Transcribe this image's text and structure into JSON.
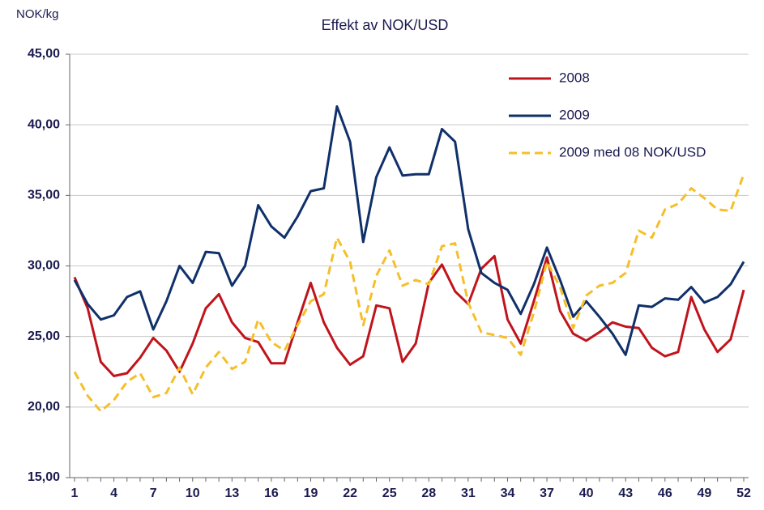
{
  "chart_data": {
    "type": "line",
    "title": "Effekt av NOK/USD",
    "y_label": "NOK/kg",
    "categories": [
      1,
      null,
      null,
      4,
      null,
      null,
      7,
      null,
      null,
      10,
      null,
      null,
      13,
      null,
      null,
      16,
      null,
      null,
      19,
      null,
      null,
      22,
      null,
      null,
      25,
      null,
      null,
      28,
      null,
      null,
      31,
      null,
      null,
      34,
      null,
      null,
      37,
      null,
      null,
      40,
      null,
      null,
      43,
      null,
      null,
      46,
      null,
      null,
      49,
      null,
      null,
      52
    ],
    "series": [
      {
        "name": "2008",
        "color": "#c0141c",
        "dash": false,
        "values": [
          29.2,
          27,
          23.2,
          22.2,
          22.4,
          23.5,
          24.9,
          24,
          22.5,
          24.5,
          27,
          28,
          26,
          24.9,
          24.6,
          23.1,
          23.1,
          26,
          28.8,
          26,
          24.2,
          23,
          23.6,
          27.2,
          27,
          23.2,
          24.5,
          28.8,
          30.1,
          28.2,
          27.3,
          29.8,
          30.7,
          26.2,
          24.5,
          27.5,
          30.6,
          26.8,
          25.2,
          24.7,
          25.3,
          26,
          25.7,
          25.6,
          24.2,
          23.6,
          23.9,
          27.8,
          25.5,
          23.9,
          24.8,
          28.3
        ]
      },
      {
        "name": "2009",
        "color": "#10306a",
        "dash": false,
        "values": [
          29,
          27.3,
          26.2,
          26.5,
          27.8,
          28.2,
          25.5,
          27.5,
          30,
          28.8,
          31,
          30.9,
          28.6,
          30,
          34.3,
          32.8,
          32,
          33.5,
          35.3,
          35.5,
          41.3,
          38.8,
          31.7,
          36.3,
          38.4,
          36.4,
          36.5,
          36.5,
          39.7,
          38.8,
          32.6,
          29.5,
          28.8,
          28.3,
          26.6,
          28.7,
          31.3,
          29,
          26.4,
          27.5,
          26.4,
          25.2,
          23.7,
          27.2,
          27.1,
          27.7,
          27.6,
          28.5,
          27.4,
          27.8,
          28.7,
          30.3
        ]
      },
      {
        "name": "2009 med 08 NOK/USD",
        "color": "#f5bf2a",
        "dash": true,
        "values": [
          22.5,
          20.8,
          19.7,
          20.5,
          21.8,
          22.4,
          20.7,
          21,
          22.8,
          20.9,
          22.8,
          23.9,
          22.7,
          23.2,
          26.2,
          24.6,
          24,
          25.8,
          27.5,
          28,
          32,
          30.3,
          25.8,
          29.3,
          31.1,
          28.6,
          29,
          28.7,
          31.4,
          31.6,
          27.4,
          25.3,
          25.1,
          24.9,
          23.7,
          26.7,
          30.3,
          28.5,
          25.6,
          27.9,
          28.6,
          28.8,
          29.5,
          32.5,
          32,
          34,
          34.4,
          35.5,
          34.8,
          34,
          33.9,
          36.5
        ]
      }
    ],
    "ylim": [
      15,
      45
    ],
    "yticks": [
      {
        "value": 15,
        "label": "15,00"
      },
      {
        "value": 20,
        "label": "20,00"
      },
      {
        "value": 25,
        "label": "25,00"
      },
      {
        "value": 30,
        "label": "30,00"
      },
      {
        "value": 35,
        "label": "35,00"
      },
      {
        "value": 40,
        "label": "40,00"
      },
      {
        "value": 45,
        "label": "45,00"
      }
    ],
    "grid": true,
    "legend": "top-right"
  }
}
